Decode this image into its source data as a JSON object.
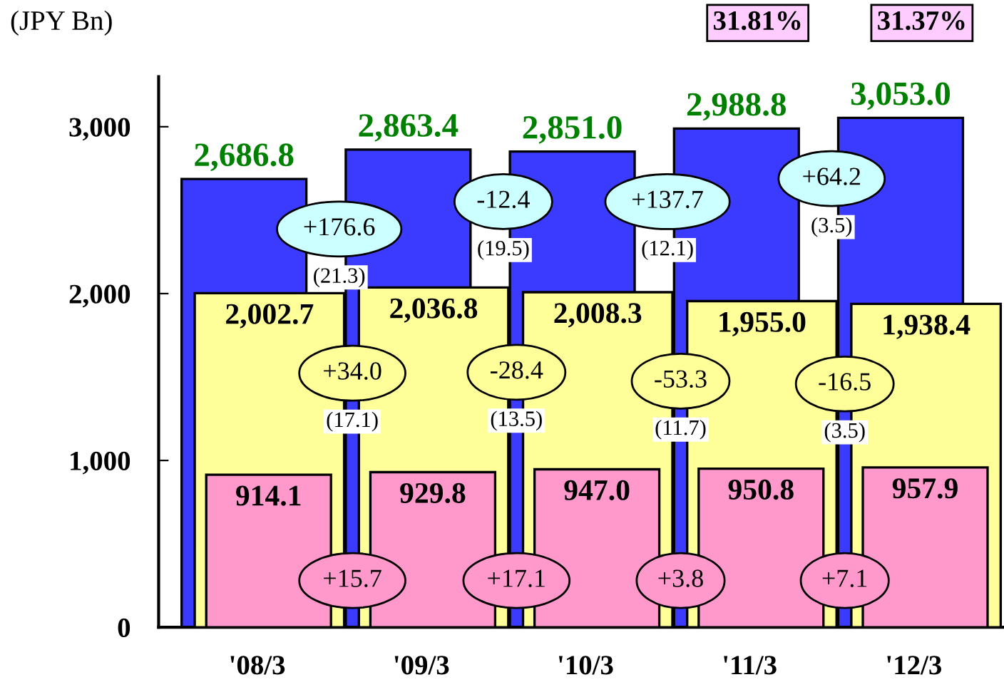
{
  "chart_data": {
    "type": "bar",
    "ylabel": "(JPY Bn)",
    "categories": [
      "'08/3",
      "'09/3",
      "'10/3",
      "'11/3",
      "'12/3"
    ],
    "series": [
      {
        "color": "#3b3bff",
        "values": [
          2686.8,
          2863.4,
          2851.0,
          2988.8,
          3053.0
        ],
        "value_labels": [
          "2,686.8",
          "2,863.4",
          "2,851.0",
          "2,988.8",
          "3,053.0"
        ]
      },
      {
        "color": "#ffff99",
        "values": [
          2002.7,
          2036.8,
          2008.3,
          1955.0,
          1938.4
        ],
        "value_labels": [
          "2,002.7",
          "2,036.8",
          "2,008.3",
          "1,955.0",
          "1,938.4"
        ]
      },
      {
        "color": "#ff99cc",
        "values": [
          914.1,
          929.8,
          947.0,
          950.8,
          957.9
        ],
        "value_labels": [
          "914.1",
          "929.8",
          "947.0",
          "950.8",
          "957.9"
        ]
      }
    ],
    "ylim": [
      0,
      3300
    ],
    "yticks": [
      0,
      {
        "value": 1000,
        "label": "1,000"
      },
      {
        "value": 2000,
        "label": "2,000"
      },
      {
        "value": 3000,
        "label": "3,000"
      }
    ],
    "annotations": [
      "+176.6",
      "-12.4",
      "+137.7",
      "+64.2",
      "(21.3)",
      "(19.5)",
      "(12.1)",
      "(3.5)",
      "+34.0",
      "-28.4",
      "-53.3",
      "-16.5",
      "(17.1)",
      "(13.5)",
      "(11.7)",
      "(3.5)",
      "+15.7",
      "+17.1",
      "+3.8",
      "+7.1",
      "31.81%",
      "31.37%"
    ],
    "grid": false,
    "legend": false
  }
}
